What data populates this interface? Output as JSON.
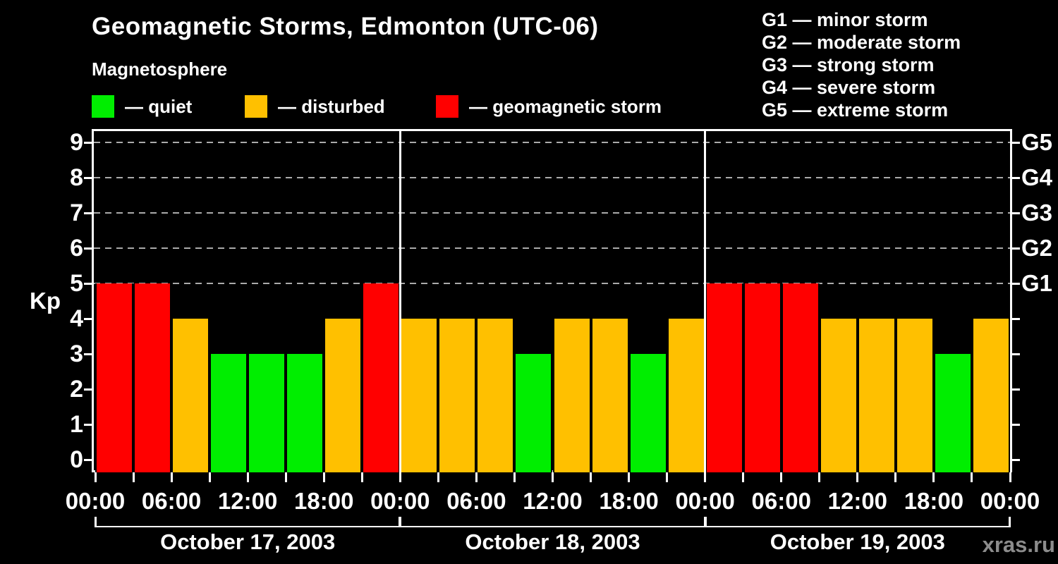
{
  "title": "Geomagnetic Storms, Edmonton (UTC-06)",
  "subtitle": "Magnetosphere",
  "kp_axis_label": "Kp",
  "watermark": "xras.ru",
  "legend": {
    "items": [
      {
        "name": "quiet",
        "label": "— quiet",
        "color": "#00EE00"
      },
      {
        "name": "disturbed",
        "label": "— disturbed",
        "color": "#FFC000"
      },
      {
        "name": "storm",
        "label": "— geomagnetic storm",
        "color": "#FF0000"
      }
    ]
  },
  "storm_scale": {
    "items": [
      {
        "code": "G1",
        "label": "G1 — minor storm"
      },
      {
        "code": "G2",
        "label": "G2 — moderate storm"
      },
      {
        "code": "G3",
        "label": "G3 — strong storm"
      },
      {
        "code": "G4",
        "label": "G4 — severe storm"
      },
      {
        "code": "G5",
        "label": "G5 — extreme storm"
      }
    ]
  },
  "chart_data": {
    "type": "bar",
    "title": "Geomagnetic Storms, Edmonton (UTC-06)",
    "ylabel": "Kp",
    "ylim": [
      0,
      9.4
    ],
    "y_ticks": [
      0,
      1,
      2,
      3,
      4,
      5,
      6,
      7,
      8,
      9
    ],
    "gridlines_at_kp": [
      5,
      6,
      7,
      8,
      9
    ],
    "grid_style": "dashed",
    "right_axis_labels": [
      {
        "kp": 5,
        "label": "G1"
      },
      {
        "kp": 6,
        "label": "G2"
      },
      {
        "kp": 7,
        "label": "G3"
      },
      {
        "kp": 8,
        "label": "G4"
      },
      {
        "kp": 9,
        "label": "G5"
      }
    ],
    "x_tick_labels": [
      "00:00",
      "06:00",
      "12:00",
      "18:00",
      "00:00",
      "06:00",
      "12:00",
      "18:00",
      "00:00",
      "06:00",
      "12:00",
      "18:00",
      "00:00"
    ],
    "interval_hours": 3,
    "color_rule": {
      "quiet_kp_max": 3,
      "disturbed_kp": 4,
      "storm_kp_min": 5
    },
    "bar_colors": {
      "quiet": "#00EE00",
      "disturbed": "#FFC000",
      "storm": "#FF0000"
    },
    "days": [
      {
        "date": "October 17, 2003",
        "kp": [
          5,
          5,
          4,
          3,
          3,
          3,
          4,
          5
        ]
      },
      {
        "date": "October 18, 2003",
        "kp": [
          4,
          4,
          4,
          3,
          4,
          4,
          3,
          4
        ]
      },
      {
        "date": "October 19, 2003",
        "kp": [
          5,
          5,
          5,
          4,
          4,
          4,
          3,
          4
        ]
      }
    ]
  }
}
